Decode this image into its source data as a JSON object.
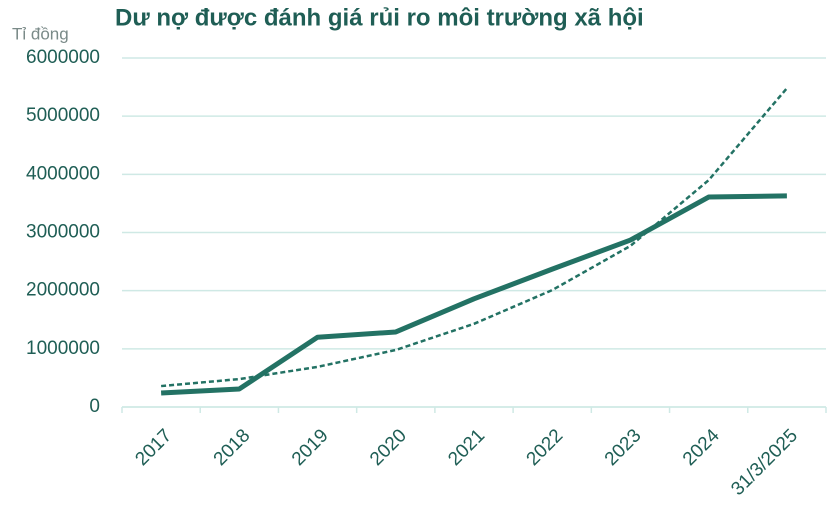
{
  "chart_data": {
    "type": "line",
    "title": "Dư nợ được đánh giá rủi ro môi trường xã hội",
    "y_axis_label": "Tỉ đồng",
    "categories": [
      "2017",
      "2018",
      "2019",
      "2020",
      "2021",
      "2022",
      "2023",
      "2024",
      "31/3/2025"
    ],
    "series": [
      {
        "color": "#237264",
        "values": [
          240000,
          310000,
          1200000,
          1290000,
          1860000,
          2370000,
          2870000,
          3610000,
          3630000
        ]
      },
      {
        "color": "#237264",
        "dashed": true,
        "values": [
          360000,
          480000,
          690000,
          980000,
          1430000,
          2010000,
          2770000,
          3900000,
          5480000
        ]
      }
    ],
    "ylim": [
      0,
      6000000
    ],
    "yticks": [
      0,
      1000000,
      2000000,
      3000000,
      4000000,
      5000000,
      6000000
    ],
    "grid": true
  }
}
